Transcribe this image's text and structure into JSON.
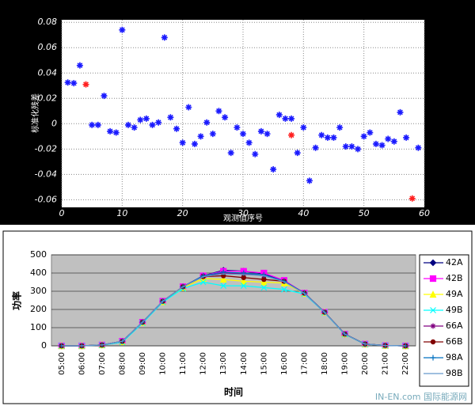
{
  "chart_data": [
    {
      "type": "scatter",
      "y_label": "标准化残差",
      "x_label": "观测值序号",
      "xlim": [
        0,
        60
      ],
      "xticks": [
        0,
        10,
        20,
        30,
        40,
        50,
        60
      ],
      "ylim": [
        -0.066,
        0.082
      ],
      "yticks": [
        -0.06,
        -0.04,
        -0.02,
        0,
        0.02,
        0.04,
        0.06,
        0.08
      ],
      "grid": true,
      "series": [
        {
          "color": "#1a1aff",
          "x": [
            1,
            2,
            3,
            5,
            6,
            7,
            8,
            9,
            10,
            11,
            12,
            13,
            14,
            15,
            16,
            17,
            18,
            19,
            20,
            21,
            22,
            23,
            24,
            25,
            26,
            27,
            28,
            29,
            30,
            31,
            32,
            33,
            34,
            35,
            36,
            37,
            38,
            39,
            40,
            41,
            42,
            43,
            44,
            45,
            46,
            47,
            48,
            49,
            50,
            51,
            52,
            53,
            54,
            55,
            56,
            57,
            59
          ],
          "y": [
            0.0325,
            0.032,
            0.046,
            -0.001,
            -0.001,
            0.022,
            -0.006,
            -0.007,
            0.074,
            -0.001,
            -0.003,
            0.003,
            0.004,
            -0.001,
            0.001,
            0.068,
            0.005,
            -0.004,
            -0.015,
            0.013,
            -0.016,
            -0.01,
            0.001,
            -0.008,
            0.01,
            0.005,
            -0.023,
            -0.003,
            -0.008,
            -0.015,
            -0.024,
            -0.006,
            -0.008,
            -0.036,
            0.007,
            0.004,
            0.004,
            -0.023,
            -0.003,
            -0.045,
            -0.019,
            -0.009,
            -0.011,
            -0.011,
            -0.003,
            -0.018,
            -0.018,
            -0.02,
            -0.01,
            -0.007,
            -0.016,
            -0.017,
            -0.012,
            -0.014,
            0.009,
            -0.011,
            -0.019
          ]
        },
        {
          "color": "#ff2020",
          "x": [
            4,
            38,
            58
          ],
          "y": [
            0.031,
            -0.009,
            -0.059
          ]
        }
      ]
    },
    {
      "type": "line",
      "y_label": "功率",
      "x_label": "时间",
      "categories": [
        "05:00",
        "06:00",
        "07:00",
        "08:00",
        "09:00",
        "10:00",
        "11:00",
        "12:00",
        "13:00",
        "14:00",
        "15:00",
        "16:00",
        "17:00",
        "18:00",
        "19:00",
        "20:00",
        "21:00",
        "22:00"
      ],
      "ylim": [
        0,
        500
      ],
      "yticks": [
        0,
        100,
        200,
        300,
        400,
        500
      ],
      "grid": true,
      "series": [
        {
          "name": "42A",
          "color": "#000080",
          "marker": "diamond",
          "values": [
            0,
            0,
            5,
            25,
            130,
            245,
            325,
            385,
            415,
            410,
            395,
            355,
            290,
            185,
            65,
            10,
            2,
            0
          ]
        },
        {
          "name": "42B",
          "color": "#ff00ff",
          "marker": "square",
          "values": [
            0,
            0,
            5,
            25,
            130,
            245,
            325,
            385,
            410,
            410,
            400,
            360,
            290,
            185,
            65,
            10,
            2,
            0
          ]
        },
        {
          "name": "49A",
          "color": "#ffff00",
          "marker": "triangle",
          "values": [
            0,
            0,
            5,
            22,
            128,
            242,
            320,
            370,
            365,
            355,
            350,
            345,
            288,
            185,
            65,
            10,
            2,
            0
          ]
        },
        {
          "name": "49B",
          "color": "#00ffff",
          "marker": "x",
          "values": [
            0,
            0,
            4,
            20,
            125,
            240,
            315,
            350,
            330,
            330,
            320,
            310,
            285,
            183,
            63,
            9,
            2,
            0
          ]
        },
        {
          "name": "66A",
          "color": "#800080",
          "marker": "star",
          "values": [
            0,
            0,
            5,
            25,
            130,
            245,
            325,
            385,
            400,
            395,
            385,
            355,
            290,
            185,
            65,
            10,
            2,
            0
          ]
        },
        {
          "name": "66B",
          "color": "#800000",
          "marker": "circle",
          "values": [
            0,
            0,
            5,
            25,
            130,
            245,
            325,
            380,
            385,
            375,
            365,
            355,
            290,
            185,
            65,
            10,
            2,
            0
          ]
        },
        {
          "name": "98A",
          "color": "#0070c0",
          "marker": "plus",
          "values": [
            0,
            0,
            5,
            25,
            130,
            245,
            325,
            385,
            405,
            400,
            390,
            355,
            290,
            185,
            65,
            10,
            2,
            0
          ]
        },
        {
          "name": "98B",
          "color": "#6699cc",
          "marker": "none",
          "values": [
            0,
            0,
            5,
            25,
            130,
            245,
            325,
            380,
            395,
            392,
            385,
            352,
            288,
            184,
            64,
            10,
            2,
            0
          ]
        }
      ]
    }
  ],
  "watermark": "IN-EN.com 国际能源网"
}
